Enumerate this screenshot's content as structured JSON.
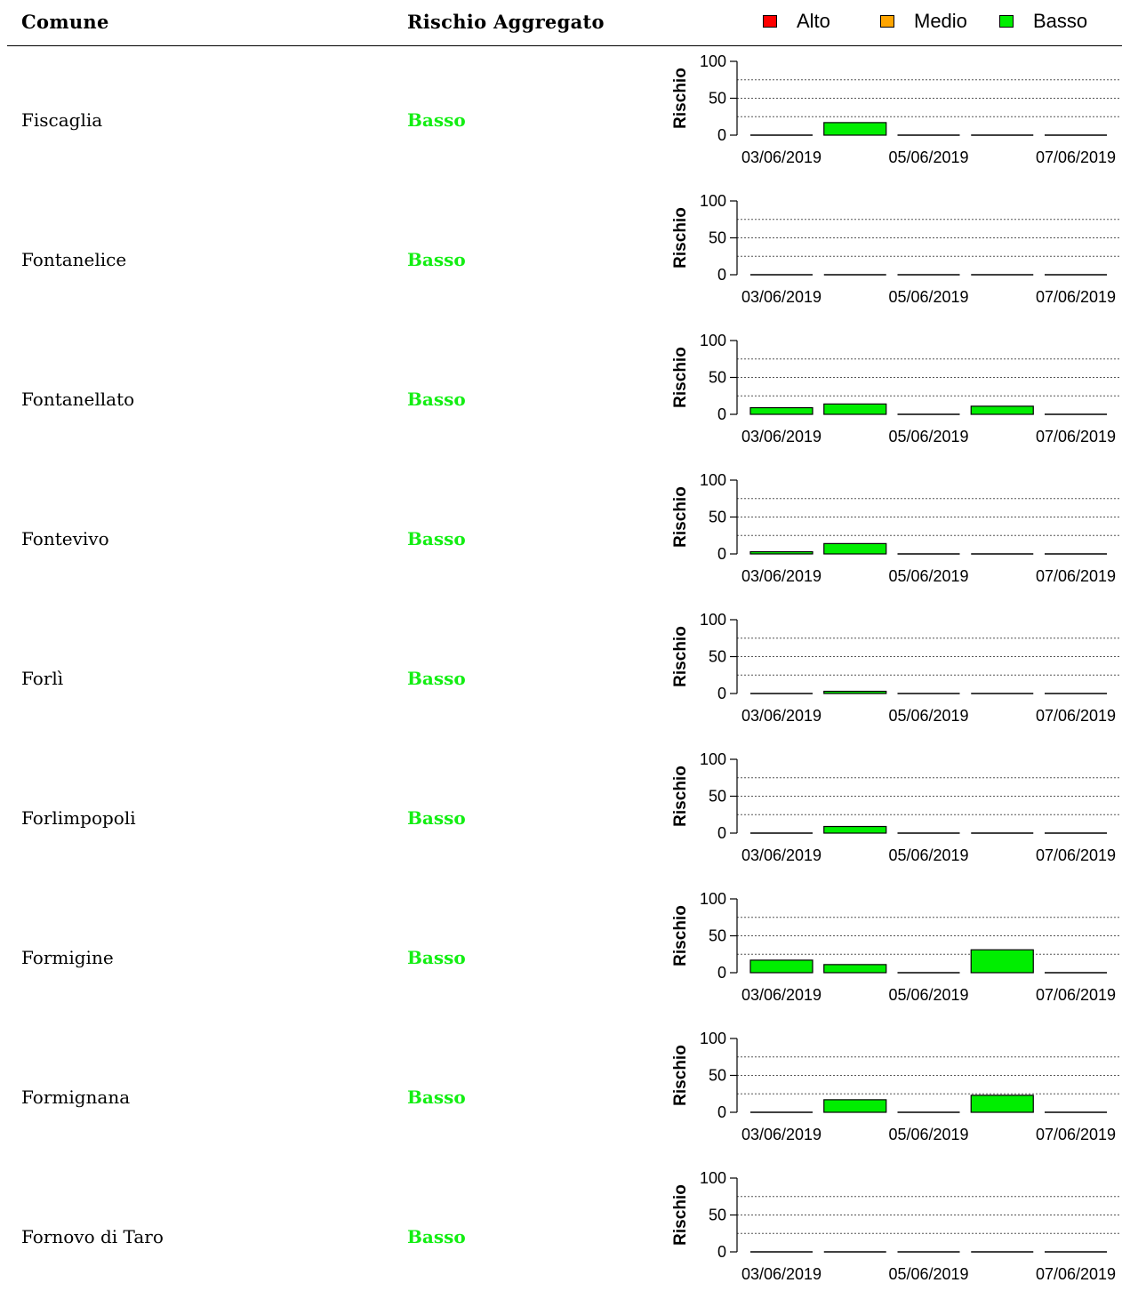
{
  "header": {
    "col_comune": "Comune",
    "col_rischio": "Rischio Aggregato"
  },
  "legend": [
    {
      "label": "Alto",
      "color": "#ff0000"
    },
    {
      "label": "Medio",
      "color": "#ffa500"
    },
    {
      "label": "Basso",
      "color": "#00ee00"
    }
  ],
  "chart_data": [
    {
      "type": "bar",
      "title": "Fiscaglia",
      "aggregate": "Basso",
      "ylabel": "Rischio",
      "ylim": [
        0,
        100
      ],
      "yticks": [
        "0",
        "50",
        "100"
      ],
      "x_tick_labels": [
        "03/06/2019",
        "05/06/2019",
        "07/06/2019"
      ],
      "categories": [
        "03/06/2019",
        "04/06/2019",
        "05/06/2019",
        "06/06/2019",
        "07/06/2019"
      ],
      "values": [
        0,
        17,
        0,
        0,
        0
      ],
      "color": "#00ee00",
      "grid": "dotted horizontal"
    },
    {
      "type": "bar",
      "title": "Fontanelice",
      "aggregate": "Basso",
      "ylabel": "Rischio",
      "ylim": [
        0,
        100
      ],
      "yticks": [
        "0",
        "50",
        "100"
      ],
      "x_tick_labels": [
        "03/06/2019",
        "05/06/2019",
        "07/06/2019"
      ],
      "categories": [
        "03/06/2019",
        "04/06/2019",
        "05/06/2019",
        "06/06/2019",
        "07/06/2019"
      ],
      "values": [
        0,
        0,
        0,
        0,
        0
      ],
      "color": "#00ee00",
      "grid": "dotted horizontal"
    },
    {
      "type": "bar",
      "title": "Fontanellato",
      "aggregate": "Basso",
      "ylabel": "Rischio",
      "ylim": [
        0,
        100
      ],
      "yticks": [
        "0",
        "50",
        "100"
      ],
      "x_tick_labels": [
        "03/06/2019",
        "05/06/2019",
        "07/06/2019"
      ],
      "categories": [
        "03/06/2019",
        "04/06/2019",
        "05/06/2019",
        "06/06/2019",
        "07/06/2019"
      ],
      "values": [
        9,
        14,
        0,
        11,
        0
      ],
      "color": "#00ee00",
      "grid": "dotted horizontal"
    },
    {
      "type": "bar",
      "title": "Fontevivo",
      "aggregate": "Basso",
      "ylabel": "Rischio",
      "ylim": [
        0,
        100
      ],
      "yticks": [
        "0",
        "50",
        "100"
      ],
      "x_tick_labels": [
        "03/06/2019",
        "05/06/2019",
        "07/06/2019"
      ],
      "categories": [
        "03/06/2019",
        "04/06/2019",
        "05/06/2019",
        "06/06/2019",
        "07/06/2019"
      ],
      "values": [
        3,
        14,
        0,
        0,
        0
      ],
      "color": "#00ee00",
      "grid": "dotted horizontal"
    },
    {
      "type": "bar",
      "title": "Forlì",
      "aggregate": "Basso",
      "ylabel": "Rischio",
      "ylim": [
        0,
        100
      ],
      "yticks": [
        "0",
        "50",
        "100"
      ],
      "x_tick_labels": [
        "03/06/2019",
        "05/06/2019",
        "07/06/2019"
      ],
      "categories": [
        "03/06/2019",
        "04/06/2019",
        "05/06/2019",
        "06/06/2019",
        "07/06/2019"
      ],
      "values": [
        0,
        3,
        0,
        0,
        0
      ],
      "color": "#00ee00",
      "grid": "dotted horizontal"
    },
    {
      "type": "bar",
      "title": "Forlimpopoli",
      "aggregate": "Basso",
      "ylabel": "Rischio",
      "ylim": [
        0,
        100
      ],
      "yticks": [
        "0",
        "50",
        "100"
      ],
      "x_tick_labels": [
        "03/06/2019",
        "05/06/2019",
        "07/06/2019"
      ],
      "categories": [
        "03/06/2019",
        "04/06/2019",
        "05/06/2019",
        "06/06/2019",
        "07/06/2019"
      ],
      "values": [
        0,
        9,
        0,
        0,
        0
      ],
      "color": "#00ee00",
      "grid": "dotted horizontal"
    },
    {
      "type": "bar",
      "title": "Formigine",
      "aggregate": "Basso",
      "ylabel": "Rischio",
      "ylim": [
        0,
        100
      ],
      "yticks": [
        "0",
        "50",
        "100"
      ],
      "x_tick_labels": [
        "03/06/2019",
        "05/06/2019",
        "07/06/2019"
      ],
      "categories": [
        "03/06/2019",
        "04/06/2019",
        "05/06/2019",
        "06/06/2019",
        "07/06/2019"
      ],
      "values": [
        17,
        11,
        0,
        31,
        0
      ],
      "color": "#00ee00",
      "grid": "dotted horizontal"
    },
    {
      "type": "bar",
      "title": "Formignana",
      "aggregate": "Basso",
      "ylabel": "Rischio",
      "ylim": [
        0,
        100
      ],
      "yticks": [
        "0",
        "50",
        "100"
      ],
      "x_tick_labels": [
        "03/06/2019",
        "05/06/2019",
        "07/06/2019"
      ],
      "categories": [
        "03/06/2019",
        "04/06/2019",
        "05/06/2019",
        "06/06/2019",
        "07/06/2019"
      ],
      "values": [
        0,
        17,
        0,
        23,
        0
      ],
      "color": "#00ee00",
      "grid": "dotted horizontal"
    },
    {
      "type": "bar",
      "title": "Fornovo di Taro",
      "aggregate": "Basso",
      "ylabel": "Rischio",
      "ylim": [
        0,
        100
      ],
      "yticks": [
        "0",
        "50",
        "100"
      ],
      "x_tick_labels": [
        "03/06/2019",
        "05/06/2019",
        "07/06/2019"
      ],
      "categories": [
        "03/06/2019",
        "04/06/2019",
        "05/06/2019",
        "06/06/2019",
        "07/06/2019"
      ],
      "values": [
        0,
        0,
        0,
        0,
        0
      ],
      "color": "#00ee00",
      "grid": "dotted horizontal"
    }
  ]
}
